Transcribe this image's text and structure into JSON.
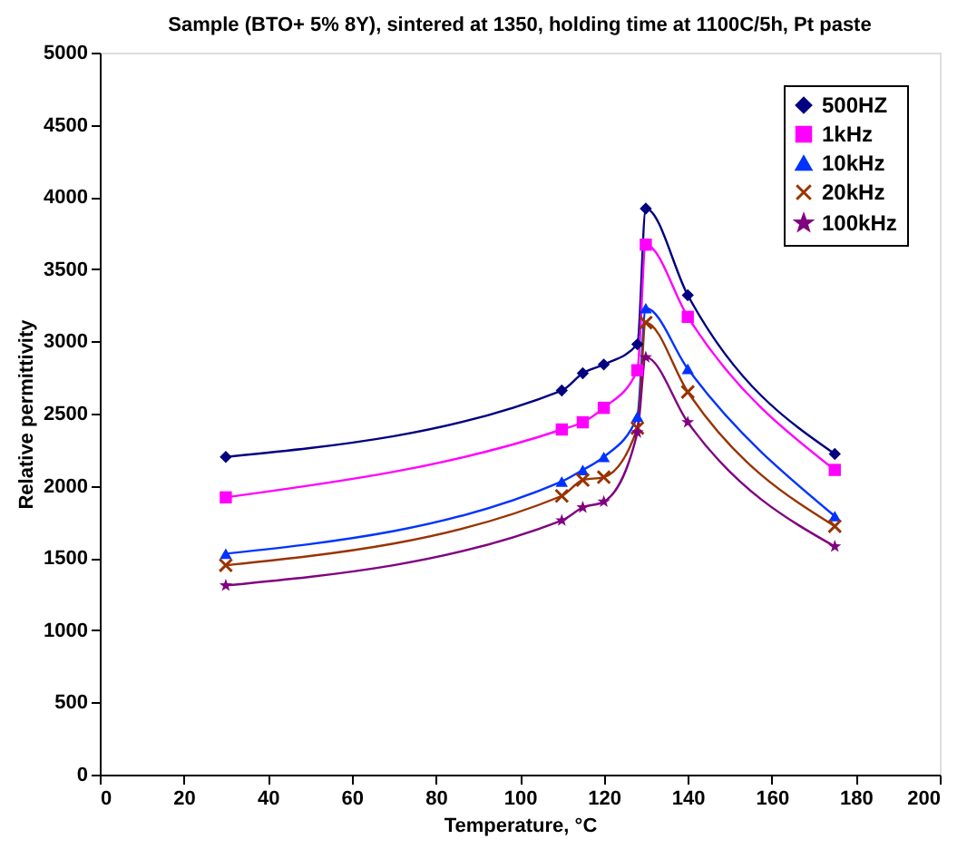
{
  "chart_data": {
    "type": "line",
    "title": "Sample (BTO+ 5% 8Y), sintered at 1350, holding time at 1100C/5h, Pt paste",
    "xlabel": "Temperature, °C",
    "ylabel": "Relative permittivity",
    "x": [
      30,
      110,
      115,
      120,
      128,
      130,
      140,
      175
    ],
    "series": [
      {
        "name": "500HZ",
        "color": "#000080",
        "marker": "diamond",
        "values": [
          2200,
          2660,
          2780,
          2840,
          2980,
          3920,
          3320,
          2220
        ]
      },
      {
        "name": "1kHz",
        "color": "#ff00ff",
        "marker": "square",
        "values": [
          1920,
          2390,
          2440,
          2540,
          2800,
          3670,
          3170,
          2110
        ]
      },
      {
        "name": "10kHz",
        "color": "#0033ff",
        "marker": "triangle",
        "values": [
          1530,
          2030,
          2110,
          2200,
          2480,
          3230,
          2810,
          1790
        ]
      },
      {
        "name": "20kHz",
        "color": "#993300",
        "marker": "cross",
        "values": [
          1450,
          1930,
          2040,
          2060,
          2400,
          3130,
          2650,
          1720
        ]
      },
      {
        "name": "100kHz",
        "color": "#800080",
        "marker": "star",
        "values": [
          1310,
          1760,
          1850,
          1890,
          2370,
          2890,
          2440,
          1580
        ]
      }
    ],
    "xlim": [
      0,
      200
    ],
    "xticks": [
      0,
      20,
      40,
      60,
      80,
      100,
      120,
      140,
      160,
      180,
      200
    ],
    "ylim": [
      0,
      5000
    ],
    "yticks": [
      0,
      500,
      1000,
      1500,
      2000,
      2500,
      3000,
      3500,
      4000,
      4500,
      5000
    ],
    "grid": false,
    "legend": "top right",
    "line_style": "solid"
  }
}
